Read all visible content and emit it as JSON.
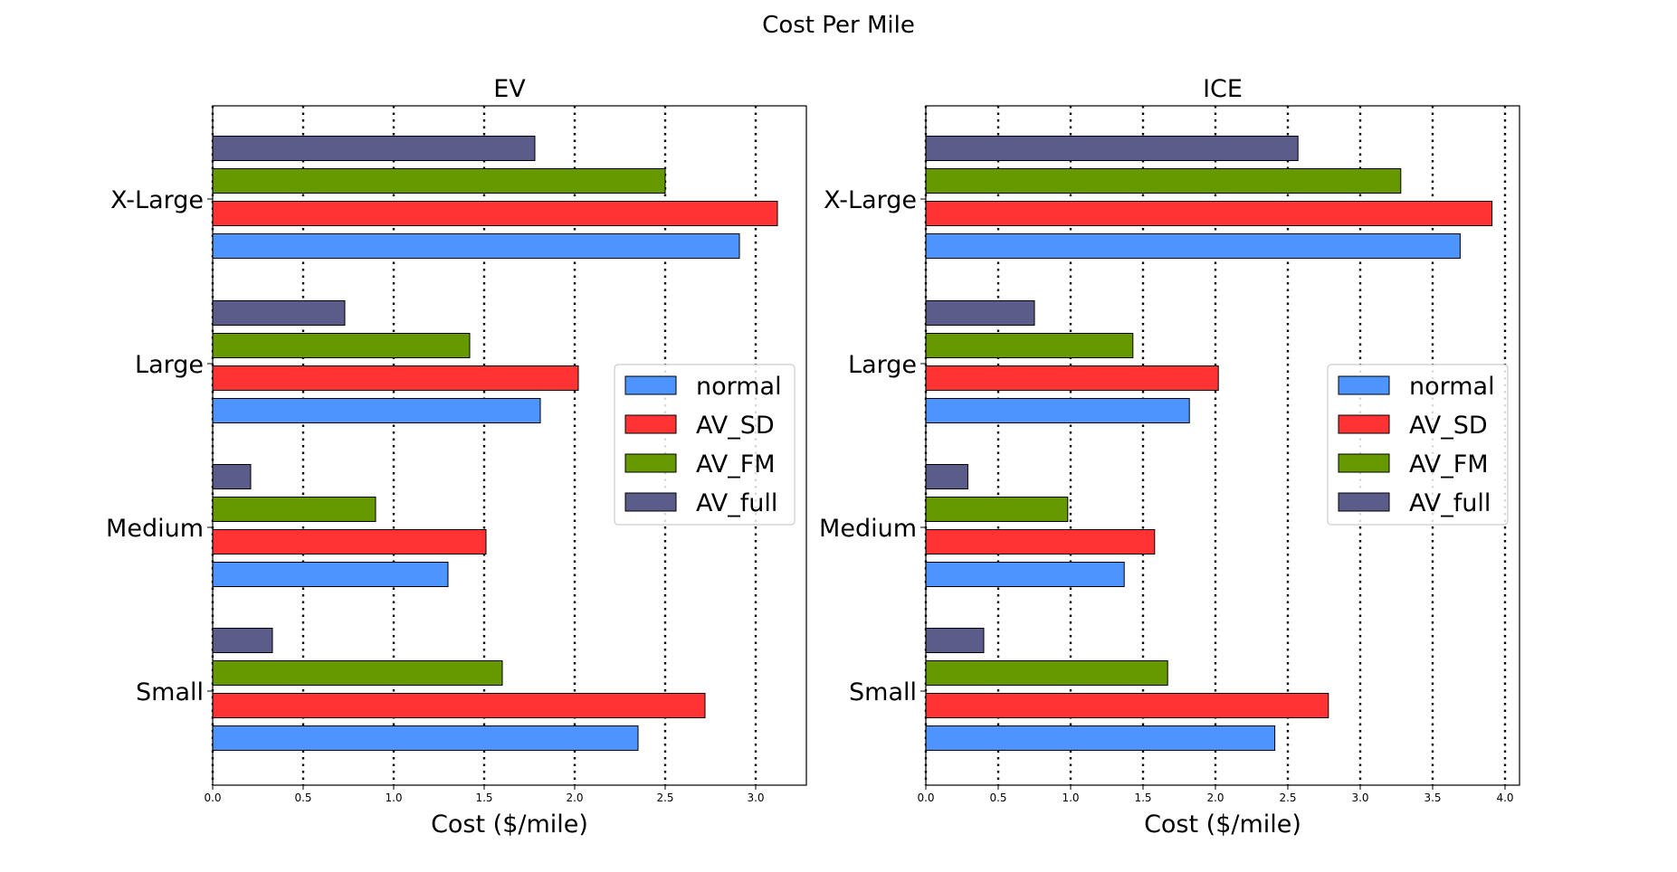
{
  "figure": {
    "suptitle": "Cost Per Mile"
  },
  "colors": {
    "normal": "#4D94FF",
    "AV_SD": "#FF3333",
    "AV_FM": "#669900",
    "AV_full": "#5C5C8A",
    "edge": "#000000"
  },
  "chart_data": [
    {
      "type": "bar",
      "orientation": "horizontal",
      "title": "EV",
      "xlabel": "Cost ($/mile)",
      "ylabel": "",
      "categories": [
        "Small",
        "Medium",
        "Large",
        "X-Large"
      ],
      "xlim": [
        0,
        3.28
      ],
      "xticks": [
        "0.0",
        "0.5",
        "1.0",
        "1.5",
        "2.0",
        "2.5",
        "3.0"
      ],
      "grid": "vertical dotted",
      "legend_position": "center-right",
      "series": [
        {
          "name": "normal",
          "values": [
            2.35,
            1.3,
            1.81,
            2.91
          ]
        },
        {
          "name": "AV_SD",
          "values": [
            2.72,
            1.51,
            2.02,
            3.12
          ]
        },
        {
          "name": "AV_FM",
          "values": [
            1.6,
            0.9,
            1.42,
            2.5
          ]
        },
        {
          "name": "AV_full",
          "values": [
            0.33,
            0.21,
            0.73,
            1.78
          ]
        }
      ]
    },
    {
      "type": "bar",
      "orientation": "horizontal",
      "title": "ICE",
      "xlabel": "Cost ($/mile)",
      "ylabel": "",
      "categories": [
        "Small",
        "Medium",
        "Large",
        "X-Large"
      ],
      "xlim": [
        0,
        4.1
      ],
      "xticks": [
        "0.0",
        "0.5",
        "1.0",
        "1.5",
        "2.0",
        "2.5",
        "3.0",
        "3.5",
        "4.0"
      ],
      "grid": "vertical dotted",
      "legend_position": "center-right",
      "series": [
        {
          "name": "normal",
          "values": [
            2.41,
            1.37,
            1.82,
            3.69
          ]
        },
        {
          "name": "AV_SD",
          "values": [
            2.78,
            1.58,
            2.02,
            3.91
          ]
        },
        {
          "name": "AV_FM",
          "values": [
            1.67,
            0.98,
            1.43,
            3.28
          ]
        },
        {
          "name": "AV_full",
          "values": [
            0.4,
            0.29,
            0.75,
            2.57
          ]
        }
      ]
    }
  ]
}
